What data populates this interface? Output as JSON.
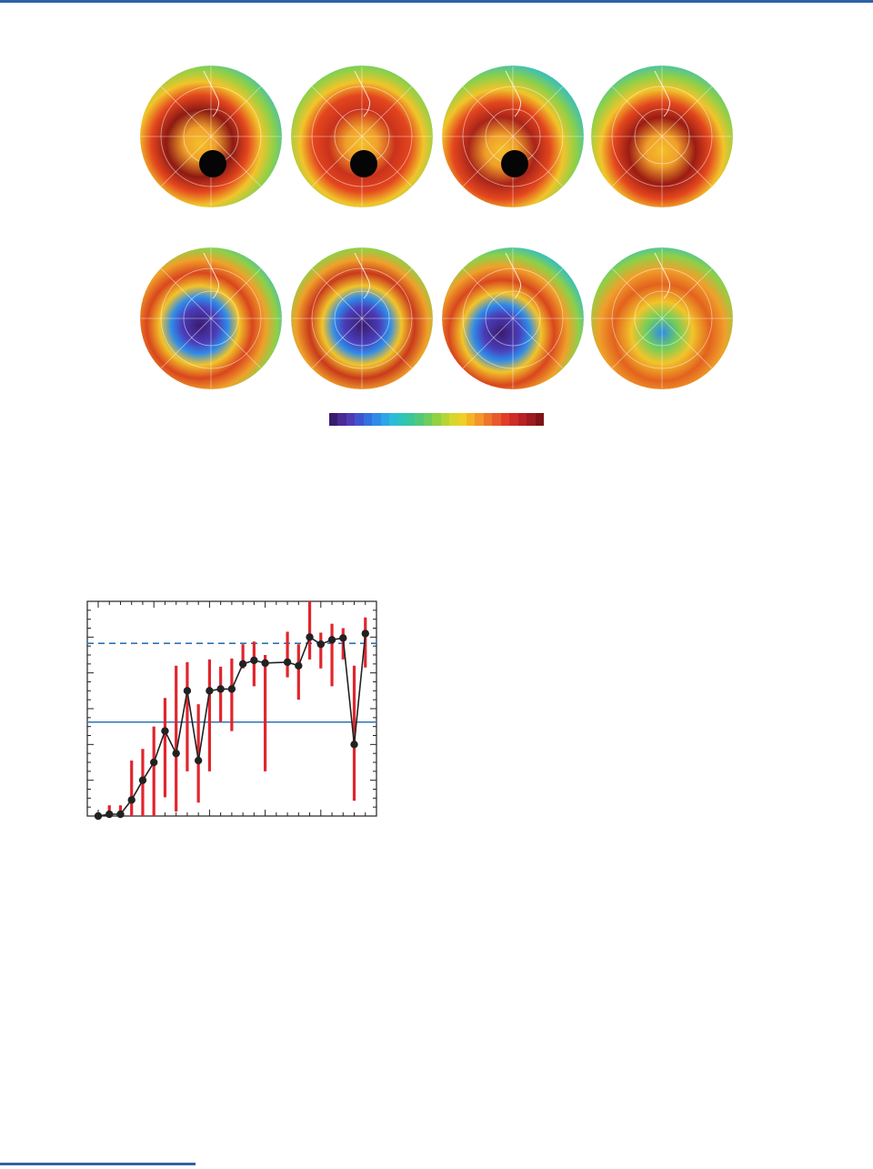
{
  "figure_maps": {
    "rows": [
      {
        "name": "upper-row",
        "globes": [
          {
            "hole": "none",
            "max_color": "#8e1a14",
            "ring_offset": 0
          },
          {
            "hole": "none",
            "max_color": "#c9321c",
            "ring_offset": 1
          },
          {
            "hole": "none",
            "max_color": "#a9241a",
            "ring_offset": 2
          },
          {
            "hole": "none",
            "max_color": "#9b1c14",
            "ring_offset": 3
          }
        ]
      },
      {
        "name": "lower-row",
        "globes": [
          {
            "hole": "deep",
            "max_color": "#d9461e",
            "ring_offset": 0
          },
          {
            "hole": "deep",
            "max_color": "#c93a1c",
            "ring_offset": 1
          },
          {
            "hole": "deep",
            "max_color": "#d9461e",
            "ring_offset": 2
          },
          {
            "hole": "shallow",
            "max_color": "#e3621e",
            "ring_offset": 3
          }
        ]
      }
    ],
    "colorbar": [
      "#3a1c6e",
      "#4a2a94",
      "#4e3cb6",
      "#3f55d0",
      "#3370e0",
      "#2f8be8",
      "#2ea5e6",
      "#2cbcd8",
      "#2ec4b8",
      "#38c79a",
      "#52c97a",
      "#6ecd5c",
      "#90d144",
      "#b4d534",
      "#d6d72a",
      "#f0cf26",
      "#f6b424",
      "#f4962a",
      "#ee762a",
      "#e85a2a",
      "#e03e28",
      "#cf2c26",
      "#b82024",
      "#9e1a1e",
      "#7e1418"
    ]
  },
  "chart_data": {
    "type": "line",
    "title": "",
    "xlabel": "",
    "ylabel": "",
    "xlim": [
      0,
      25
    ],
    "ylim": [
      0,
      24
    ],
    "grid": false,
    "legend": "none",
    "x": [
      0,
      1,
      2,
      3,
      4,
      5,
      6,
      7,
      8,
      9,
      10,
      11,
      12,
      13,
      14,
      15,
      16,
      17,
      18,
      19,
      20,
      21,
      22,
      23,
      24
    ],
    "series": [
      {
        "values": [
          0,
          0.2,
          0.2,
          1.8,
          4,
          6,
          9.5,
          7,
          14,
          6.2,
          14,
          14.2,
          14.2,
          17,
          17.4,
          17.1,
          null,
          17.2,
          16.8,
          20,
          19.2,
          19.7,
          19.9,
          8,
          20.4
        ],
        "err_low": [
          0,
          0,
          0,
          0,
          0,
          0,
          2.1,
          0.5,
          5,
          1.5,
          5,
          10.5,
          9.5,
          16.5,
          14.5,
          5,
          null,
          15.5,
          13,
          17.5,
          16.5,
          14.5,
          17.5,
          1.7,
          16.6
        ],
        "err_high": [
          0,
          1.2,
          1.2,
          6.2,
          7.5,
          10,
          13.2,
          16.8,
          17.2,
          12.5,
          17.5,
          16.7,
          17.6,
          19.2,
          19.5,
          18,
          null,
          20.6,
          19.2,
          24,
          20.5,
          21.5,
          21,
          16.8,
          22.2
        ]
      }
    ],
    "reference_lines": [
      {
        "y": 10.5,
        "style": "solid",
        "color": "#2e74b5"
      },
      {
        "y": 19.3,
        "style": "dashed",
        "color": "#2e74b5"
      }
    ],
    "y_ticks_major": [
      0,
      4,
      8,
      12,
      16,
      20,
      24
    ],
    "x_ticks_major": [
      0,
      5,
      10,
      15,
      20,
      25
    ],
    "errorbar_color": "#e0262d",
    "line_color": "#222222"
  }
}
